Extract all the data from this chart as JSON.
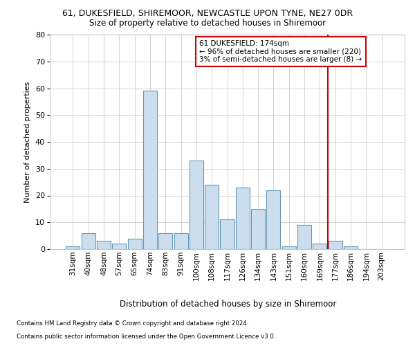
{
  "title_line1": "61, DUKESFIELD, SHIREMOOR, NEWCASTLE UPON TYNE, NE27 0DR",
  "title_line2": "Size of property relative to detached houses in Shiremoor",
  "xlabel": "Distribution of detached houses by size in Shiremoor",
  "ylabel": "Number of detached properties",
  "categories": [
    "31sqm",
    "40sqm",
    "48sqm",
    "57sqm",
    "65sqm",
    "74sqm",
    "83sqm",
    "91sqm",
    "100sqm",
    "108sqm",
    "117sqm",
    "126sqm",
    "134sqm",
    "143sqm",
    "151sqm",
    "160sqm",
    "169sqm",
    "177sqm",
    "186sqm",
    "194sqm",
    "203sqm"
  ],
  "values": [
    1,
    6,
    3,
    2,
    4,
    59,
    6,
    6,
    33,
    24,
    11,
    23,
    15,
    22,
    1,
    9,
    2,
    3,
    1,
    0,
    0
  ],
  "bar_color": "#ccdded",
  "bar_edge_color": "#6699bb",
  "annotation_text_line1": "61 DUKESFIELD: 174sqm",
  "annotation_text_line2": "← 96% of detached houses are smaller (220)",
  "annotation_text_line3": "3% of semi-detached houses are larger (8) →",
  "annotation_box_facecolor": "#ffffff",
  "annotation_box_edge": "#cc0000",
  "vline_color": "#cc0000",
  "vline_x_idx": 16.5,
  "ylim": [
    0,
    80
  ],
  "yticks": [
    0,
    10,
    20,
    30,
    40,
    50,
    60,
    70,
    80
  ],
  "footer_line1": "Contains HM Land Registry data © Crown copyright and database right 2024.",
  "footer_line2": "Contains public sector information licensed under the Open Government Licence v3.0.",
  "bg_color": "#ffffff",
  "grid_color": "#cccccc"
}
